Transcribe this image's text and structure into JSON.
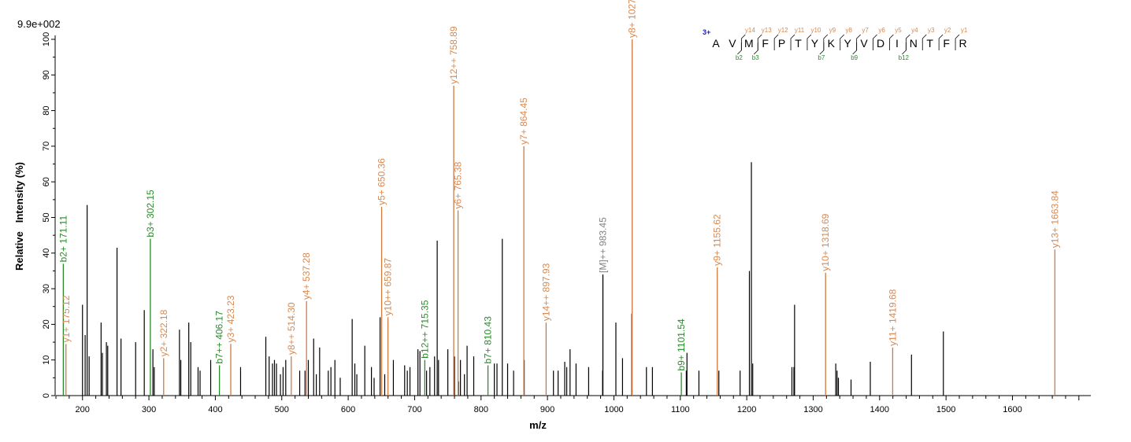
{
  "chart_data": {
    "type": "bar",
    "subtype": "mass-spectrum",
    "scale_label": "9.9e+002",
    "xlabel": "m/z",
    "ylabel": "Relative   Intensity (%)",
    "xlim": [
      160,
      1718
    ],
    "ylim": [
      0,
      100
    ],
    "x_ticks": [
      200,
      300,
      400,
      500,
      600,
      700,
      800,
      900,
      1000,
      1100,
      1200,
      1300,
      1400,
      1500,
      1600
    ],
    "y_ticks": [
      0,
      10,
      20,
      30,
      40,
      50,
      60,
      70,
      80,
      90,
      100
    ],
    "grid": false,
    "colors": {
      "unmatched": "#000000",
      "y_ion": "#d8884f",
      "b_ion": "#2a8a2a",
      "precursor": "#808080",
      "sequence": "#000000",
      "charge": "#1a1acc"
    },
    "unmatched_peaks": [
      [
        200,
        25.5
      ],
      [
        204,
        17
      ],
      [
        207,
        53.5
      ],
      [
        210,
        11
      ],
      [
        228,
        20.5
      ],
      [
        230,
        12
      ],
      [
        236,
        15
      ],
      [
        238,
        14
      ],
      [
        252,
        41.5
      ],
      [
        258,
        16
      ],
      [
        280,
        15
      ],
      [
        293,
        24
      ],
      [
        306,
        13
      ],
      [
        308,
        8
      ],
      [
        346,
        18.5
      ],
      [
        348,
        10
      ],
      [
        360,
        20.5
      ],
      [
        363,
        15
      ],
      [
        374,
        8
      ],
      [
        377,
        7
      ],
      [
        393,
        10
      ],
      [
        438,
        8
      ],
      [
        476,
        16.5
      ],
      [
        481,
        11
      ],
      [
        486,
        9
      ],
      [
        489,
        10
      ],
      [
        492,
        9
      ],
      [
        498,
        6
      ],
      [
        502,
        8
      ],
      [
        506,
        10
      ],
      [
        527,
        7
      ],
      [
        535,
        7
      ],
      [
        540,
        10
      ],
      [
        548,
        16
      ],
      [
        552,
        6
      ],
      [
        557,
        13.5
      ],
      [
        570,
        7
      ],
      [
        574,
        8
      ],
      [
        580,
        10
      ],
      [
        588,
        5
      ],
      [
        606,
        21.5
      ],
      [
        610,
        9
      ],
      [
        613,
        6
      ],
      [
        625,
        14
      ],
      [
        635,
        8
      ],
      [
        639,
        5
      ],
      [
        648,
        22
      ],
      [
        655,
        6
      ],
      [
        668,
        10
      ],
      [
        685,
        8.5
      ],
      [
        689,
        7
      ],
      [
        693,
        8
      ],
      [
        705,
        13
      ],
      [
        708,
        12.5
      ],
      [
        718,
        7
      ],
      [
        723,
        8
      ],
      [
        730,
        11
      ],
      [
        734,
        43.5
      ],
      [
        736,
        10
      ],
      [
        750,
        13
      ],
      [
        760,
        11
      ],
      [
        766,
        4
      ],
      [
        769,
        10
      ],
      [
        775,
        6
      ],
      [
        779,
        14
      ],
      [
        789,
        11
      ],
      [
        820,
        9
      ],
      [
        824,
        9
      ],
      [
        832,
        44
      ],
      [
        840,
        9
      ],
      [
        849,
        7
      ],
      [
        865,
        10
      ],
      [
        909,
        7
      ],
      [
        916,
        7
      ],
      [
        926,
        9.5
      ],
      [
        929,
        8
      ],
      [
        934,
        13
      ],
      [
        943,
        9
      ],
      [
        962,
        8
      ],
      [
        983,
        7
      ],
      [
        1003,
        20.5
      ],
      [
        1013,
        10.5
      ],
      [
        1027,
        23
      ],
      [
        1049,
        8
      ],
      [
        1058,
        8
      ],
      [
        1109,
        7
      ],
      [
        1110,
        12
      ],
      [
        1128,
        7
      ],
      [
        1158,
        7
      ],
      [
        1190,
        7
      ],
      [
        1204,
        35
      ],
      [
        1207,
        65.5
      ],
      [
        1209,
        9
      ],
      [
        1268,
        8
      ],
      [
        1271,
        8
      ],
      [
        1272,
        25.5
      ],
      [
        1334,
        9
      ],
      [
        1336,
        7
      ],
      [
        1338,
        5
      ],
      [
        1357,
        4.5
      ],
      [
        1386,
        9.5
      ],
      [
        1448,
        11.5
      ],
      [
        1496,
        18
      ]
    ],
    "annotated_peaks": [
      {
        "mz": 171.11,
        "intensity": 37,
        "label": "b2+ 171.11",
        "type": "b"
      },
      {
        "mz": 175.12,
        "intensity": 14.5,
        "label": "y1+ 175.12",
        "type": "y"
      },
      {
        "mz": 302.15,
        "intensity": 44,
        "label": "b3+ 302.15",
        "type": "b"
      },
      {
        "mz": 322.18,
        "intensity": 10.5,
        "label": "y2+ 322.18",
        "type": "y"
      },
      {
        "mz": 406.17,
        "intensity": 8.5,
        "label": "b7++ 406.17",
        "type": "b"
      },
      {
        "mz": 423.23,
        "intensity": 14.5,
        "label": "y3+ 423.23",
        "type": "y"
      },
      {
        "mz": 514.3,
        "intensity": 11,
        "label": "y8++ 514.30",
        "type": "y"
      },
      {
        "mz": 537.28,
        "intensity": 26.5,
        "label": "y4+ 537.28",
        "type": "y"
      },
      {
        "mz": 650.36,
        "intensity": 53,
        "label": "y5+ 650.36",
        "type": "y"
      },
      {
        "mz": 659.87,
        "intensity": 22,
        "label": "y10++ 659.87",
        "type": "y"
      },
      {
        "mz": 715.35,
        "intensity": 10,
        "label": "b12++ 715.35",
        "type": "b"
      },
      {
        "mz": 758.89,
        "intensity": 87,
        "label": "y12++ 758.89",
        "type": "y"
      },
      {
        "mz": 765.38,
        "intensity": 52,
        "label": "y6+ 765.38",
        "type": "y"
      },
      {
        "mz": 810.43,
        "intensity": 8.5,
        "label": "b7+ 810.43",
        "type": "b"
      },
      {
        "mz": 864.45,
        "intensity": 70,
        "label": "y7+ 864.45",
        "type": "y"
      },
      {
        "mz": 897.93,
        "intensity": 20.5,
        "label": "y14++ 897.93",
        "type": "y"
      },
      {
        "mz": 983.45,
        "intensity": 34,
        "label": "[M]++ 983.45",
        "type": "precursor"
      },
      {
        "mz": 1027.52,
        "intensity": 100,
        "label": "y8+ 1027.52",
        "type": "y"
      },
      {
        "mz": 1101.54,
        "intensity": 6.5,
        "label": "b9+ 1101.54",
        "type": "b"
      },
      {
        "mz": 1155.62,
        "intensity": 36,
        "label": "y9+ 1155.62",
        "type": "y"
      },
      {
        "mz": 1318.69,
        "intensity": 34.5,
        "label": "y10+ 1318.69",
        "type": "y"
      },
      {
        "mz": 1419.68,
        "intensity": 13.5,
        "label": "y11+ 1419.68",
        "type": "y"
      },
      {
        "mz": 1663.84,
        "intensity": 41,
        "label": "y13+ 1663.84",
        "type": "y"
      }
    ],
    "sequence": {
      "charge": "3+",
      "residues": [
        "A",
        "V",
        "M",
        "F",
        "P",
        "T",
        "Y",
        "K",
        "Y",
        "V",
        "D",
        "I",
        "N",
        "T",
        "F",
        "R"
      ],
      "y_ions": [
        {
          "after": 2,
          "label": "y14"
        },
        {
          "after": 3,
          "label": "y13"
        },
        {
          "after": 4,
          "label": "y12"
        },
        {
          "after": 5,
          "label": "y11"
        },
        {
          "after": 6,
          "label": "y10"
        },
        {
          "after": 7,
          "label": "y9"
        },
        {
          "after": 8,
          "label": "y8"
        },
        {
          "after": 9,
          "label": "y7"
        },
        {
          "after": 10,
          "label": "y6"
        },
        {
          "after": 11,
          "label": "y5"
        },
        {
          "after": 12,
          "label": "y4"
        },
        {
          "after": 13,
          "label": "y3"
        },
        {
          "after": 14,
          "label": "y2"
        },
        {
          "after": 15,
          "label": "y1"
        }
      ],
      "b_ions": [
        {
          "after": 2,
          "label": "b2"
        },
        {
          "after": 3,
          "label": "b3"
        },
        {
          "after": 7,
          "label": "b7"
        },
        {
          "after": 9,
          "label": "b9"
        },
        {
          "after": 12,
          "label": "b12"
        }
      ]
    }
  }
}
